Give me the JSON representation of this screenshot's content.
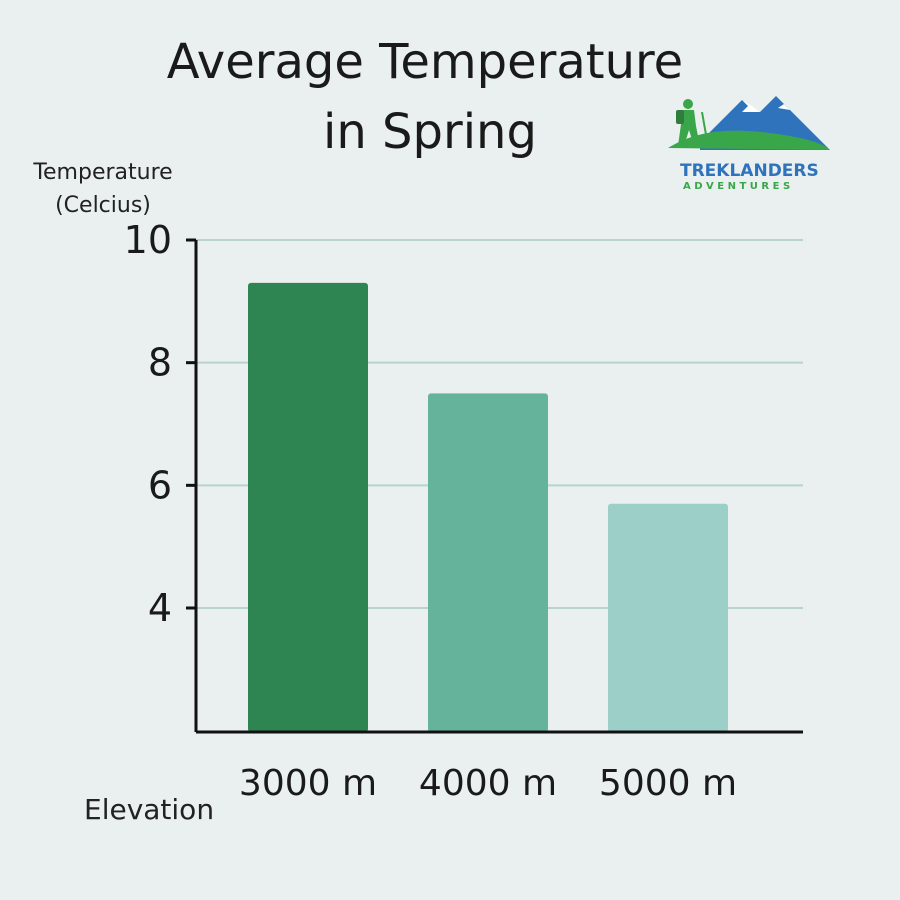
{
  "chart_data": {
    "type": "bar",
    "title": [
      "Average Temperature",
      "in Spring"
    ],
    "ylabel": [
      "Temperature",
      "(Celcius)"
    ],
    "xlabel": "Elevation",
    "categories": [
      "3000 m",
      "4000 m",
      "5000 m"
    ],
    "values": [
      9.3,
      7.5,
      5.7
    ],
    "yticks": [
      4,
      6,
      8,
      10
    ],
    "ylim": [
      2,
      10
    ],
    "grid": true,
    "bar_colors": [
      "#2e8552",
      "#66b39c",
      "#9ccfc7"
    ]
  },
  "brand": {
    "name": "TREKLANDERS",
    "tagline": "ADVENTURES",
    "name_color": "#2f73bd",
    "tagline_color": "#3aa64a",
    "icon": "hiker-mountain-logo"
  }
}
